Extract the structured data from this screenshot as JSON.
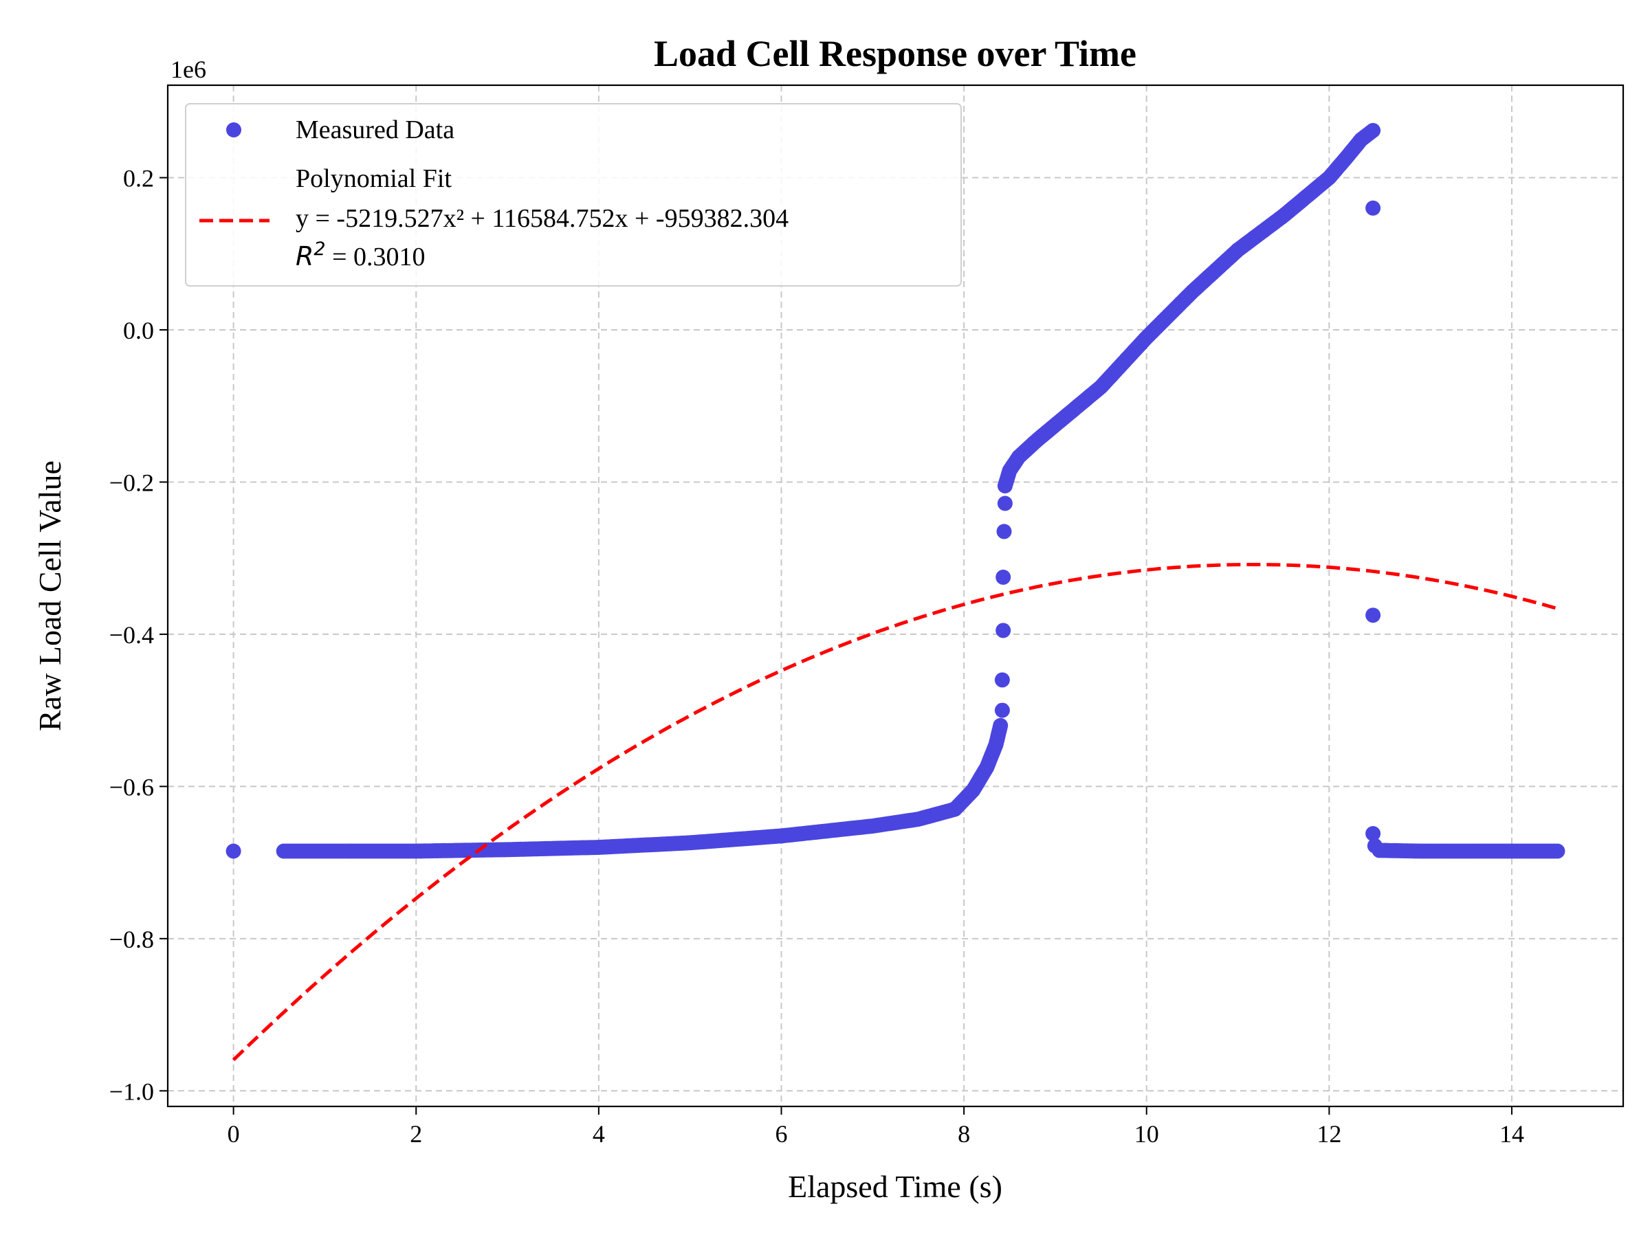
{
  "chart_data": {
    "type": "scatter",
    "title": "Load Cell Response over Time",
    "xlabel": "Elapsed Time (s)",
    "ylabel": "Raw Load Cell Value",
    "y_scale_label": "1e6",
    "xlim": [
      -0.72,
      15.22
    ],
    "ylim": [
      -1.0205,
      0.3215
    ],
    "x_ticks": [
      0,
      2,
      4,
      6,
      8,
      10,
      12,
      14
    ],
    "x_tick_labels": [
      "0",
      "2",
      "4",
      "6",
      "8",
      "10",
      "12",
      "14"
    ],
    "y_ticks": [
      -1.0,
      -0.8,
      -0.6,
      -0.4,
      -0.2,
      0.0,
      0.2
    ],
    "y_tick_labels": [
      "−1.0",
      "−0.8",
      "−0.6",
      "−0.4",
      "−0.2",
      "0.0",
      "0.2"
    ],
    "grid": true,
    "legend_position": "upper-left",
    "series": [
      {
        "name": "Measured Data",
        "kind": "markers",
        "color": "#4b45e0",
        "segments": [
          {
            "points": [
              [
                0.0,
                -0.685
              ]
            ]
          },
          {
            "points": [
              [
                0.55,
                -0.685
              ],
              [
                2.0,
                -0.685
              ],
              [
                3.0,
                -0.683
              ],
              [
                4.0,
                -0.68
              ],
              [
                5.0,
                -0.674
              ],
              [
                6.0,
                -0.665
              ],
              [
                7.0,
                -0.652
              ],
              [
                7.5,
                -0.643
              ],
              [
                7.9,
                -0.63
              ],
              [
                8.1,
                -0.605
              ],
              [
                8.25,
                -0.575
              ],
              [
                8.35,
                -0.545
              ],
              [
                8.4,
                -0.52
              ]
            ]
          },
          {
            "points": [
              [
                8.42,
                -0.5
              ],
              [
                8.42,
                -0.46
              ],
              [
                8.43,
                -0.395
              ],
              [
                8.43,
                -0.325
              ],
              [
                8.44,
                -0.265
              ],
              [
                8.45,
                -0.228
              ]
            ]
          },
          {
            "points": [
              [
                8.45,
                -0.205
              ],
              [
                8.5,
                -0.185
              ],
              [
                8.6,
                -0.167
              ],
              [
                8.8,
                -0.145
              ],
              [
                9.0,
                -0.125
              ],
              [
                9.5,
                -0.075
              ],
              [
                10.0,
                -0.01
              ],
              [
                10.5,
                0.05
              ],
              [
                11.0,
                0.105
              ],
              [
                11.5,
                0.15
              ],
              [
                12.0,
                0.2
              ],
              [
                12.2,
                0.228
              ],
              [
                12.35,
                0.25
              ],
              [
                12.48,
                0.262
              ]
            ]
          },
          {
            "points": [
              [
                12.48,
                0.16
              ],
              [
                12.48,
                -0.375
              ],
              [
                12.48,
                -0.662
              ],
              [
                12.5,
                -0.678
              ]
            ]
          },
          {
            "points": [
              [
                12.55,
                -0.684
              ],
              [
                13.0,
                -0.685
              ],
              [
                14.5,
                -0.685
              ]
            ]
          }
        ]
      },
      {
        "name": "Polynomial Fit",
        "kind": "dashed-line",
        "color": "#ff0000",
        "equation": "y = -5219.527x² + 116584.752x + -959382.304",
        "r2_symbol": "R",
        "r2_exponent": "2",
        "r2_value": " = 0.3010",
        "coefficients": [
          -5219.527,
          116584.752,
          -959382.304
        ],
        "x_range": [
          0,
          14.5
        ]
      }
    ]
  }
}
